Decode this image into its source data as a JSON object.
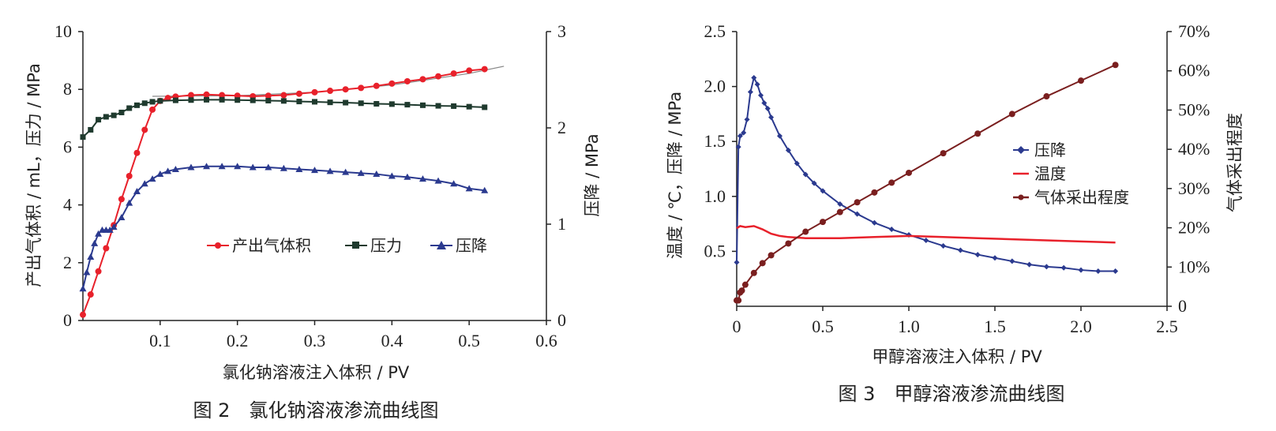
{
  "chart_data": [
    {
      "type": "line",
      "caption": "图 2　氯化钠溶液渗流曲线图",
      "xlabel": "氯化钠溶液注入体积 / PV",
      "ylabel_left": "产出气体积 / mL，压力 / MPa",
      "ylabel_right": "压降 / MPa",
      "xlim": [
        0,
        0.6
      ],
      "ylim_left": [
        0,
        10
      ],
      "ylim_right": [
        0,
        3
      ],
      "xticks": [
        "0.1",
        "0.2",
        "0.3",
        "0.4",
        "0.5",
        "0.6"
      ],
      "yticks_left": [
        "0",
        "2",
        "4",
        "6",
        "8",
        "10"
      ],
      "yticks_right": [
        "0",
        "1",
        "2",
        "3"
      ],
      "legend_position": "center-right",
      "series": [
        {
          "name": "产出气体积",
          "axis": "left",
          "color": "#e8212b",
          "marker": "circle",
          "x": [
            0,
            0.01,
            0.02,
            0.03,
            0.04,
            0.05,
            0.06,
            0.07,
            0.08,
            0.09,
            0.1,
            0.11,
            0.12,
            0.14,
            0.16,
            0.18,
            0.2,
            0.22,
            0.24,
            0.26,
            0.28,
            0.3,
            0.32,
            0.34,
            0.36,
            0.38,
            0.4,
            0.42,
            0.44,
            0.46,
            0.48,
            0.5,
            0.52
          ],
          "y": [
            0.2,
            0.9,
            1.7,
            2.5,
            3.3,
            4.2,
            5.0,
            5.8,
            6.6,
            7.3,
            7.6,
            7.7,
            7.75,
            7.8,
            7.82,
            7.8,
            7.78,
            7.76,
            7.78,
            7.8,
            7.85,
            7.9,
            7.95,
            8.0,
            8.05,
            8.12,
            8.2,
            8.28,
            8.35,
            8.45,
            8.55,
            8.65,
            8.7
          ]
        },
        {
          "name": "压力",
          "axis": "left",
          "color": "#1f3a2e",
          "marker": "square",
          "x": [
            0,
            0.01,
            0.02,
            0.03,
            0.04,
            0.05,
            0.06,
            0.07,
            0.08,
            0.09,
            0.1,
            0.12,
            0.14,
            0.16,
            0.18,
            0.2,
            0.22,
            0.24,
            0.26,
            0.28,
            0.3,
            0.32,
            0.34,
            0.36,
            0.38,
            0.4,
            0.42,
            0.44,
            0.46,
            0.48,
            0.5,
            0.52
          ],
          "y": [
            6.35,
            6.6,
            6.95,
            7.05,
            7.1,
            7.2,
            7.35,
            7.45,
            7.52,
            7.57,
            7.6,
            7.62,
            7.63,
            7.64,
            7.64,
            7.63,
            7.62,
            7.61,
            7.6,
            7.58,
            7.57,
            7.55,
            7.54,
            7.52,
            7.5,
            7.49,
            7.47,
            7.45,
            7.43,
            7.42,
            7.4,
            7.38
          ]
        },
        {
          "name": "压降",
          "axis": "right",
          "color": "#2b3a8f",
          "marker": "triangle",
          "x": [
            0,
            0.005,
            0.01,
            0.015,
            0.02,
            0.025,
            0.03,
            0.035,
            0.04,
            0.05,
            0.06,
            0.07,
            0.08,
            0.09,
            0.1,
            0.11,
            0.12,
            0.14,
            0.16,
            0.18,
            0.2,
            0.22,
            0.24,
            0.26,
            0.28,
            0.3,
            0.32,
            0.34,
            0.36,
            0.38,
            0.4,
            0.42,
            0.44,
            0.46,
            0.48,
            0.5,
            0.52
          ],
          "y": [
            0.33,
            0.5,
            0.66,
            0.8,
            0.9,
            0.94,
            0.94,
            0.94,
            0.97,
            1.07,
            1.22,
            1.34,
            1.42,
            1.47,
            1.52,
            1.55,
            1.57,
            1.59,
            1.6,
            1.6,
            1.6,
            1.59,
            1.59,
            1.58,
            1.57,
            1.56,
            1.55,
            1.54,
            1.53,
            1.52,
            1.5,
            1.49,
            1.47,
            1.45,
            1.42,
            1.37,
            1.35
          ]
        }
      ],
      "trendline": {
        "color": "#888888",
        "x": [
          0.09,
          0.2,
          0.3,
          0.4,
          0.5,
          0.545
        ],
        "y": [
          7.76,
          7.78,
          7.9,
          8.15,
          8.55,
          8.8
        ]
      }
    },
    {
      "type": "line",
      "caption": "图 3　甲醇溶液渗流曲线图",
      "xlabel": "甲醇溶液注入体积 / PV",
      "ylabel_left": "温度 / ℃，压降 / MPa",
      "ylabel_right": "气体采出程度",
      "xlim": [
        0,
        2.5
      ],
      "ylim_left": [
        0,
        2.5
      ],
      "ylim_right": [
        0,
        0.7
      ],
      "xticks": [
        "0",
        "0.5",
        "1.0",
        "1.5",
        "2.0",
        "2.5"
      ],
      "yticks_left": [
        "0.5",
        "1.0",
        "1.5",
        "2.0",
        "2.5"
      ],
      "yticks_right": [
        "0",
        "10%",
        "20%",
        "30%",
        "40%",
        "50%",
        "60%",
        "70%"
      ],
      "legend_position": "center-right",
      "series": [
        {
          "name": "压降",
          "axis": "left",
          "color": "#2b3a8f",
          "marker": "diamond",
          "x": [
            0,
            0.01,
            0.02,
            0.04,
            0.06,
            0.08,
            0.1,
            0.12,
            0.14,
            0.16,
            0.18,
            0.2,
            0.25,
            0.3,
            0.35,
            0.4,
            0.45,
            0.5,
            0.6,
            0.7,
            0.8,
            0.9,
            1.0,
            1.1,
            1.2,
            1.3,
            1.4,
            1.5,
            1.6,
            1.7,
            1.8,
            1.9,
            2.0,
            2.1,
            2.2
          ],
          "y": [
            0.4,
            1.45,
            1.55,
            1.58,
            1.7,
            1.95,
            2.08,
            2.02,
            1.92,
            1.85,
            1.8,
            1.72,
            1.55,
            1.42,
            1.3,
            1.2,
            1.12,
            1.05,
            0.93,
            0.84,
            0.76,
            0.7,
            0.65,
            0.6,
            0.55,
            0.51,
            0.47,
            0.44,
            0.41,
            0.38,
            0.36,
            0.35,
            0.33,
            0.32,
            0.32
          ]
        },
        {
          "name": "温度",
          "axis": "left",
          "color": "#e8212b",
          "marker": "none",
          "x": [
            0,
            0.02,
            0.05,
            0.1,
            0.15,
            0.2,
            0.25,
            0.3,
            0.4,
            0.5,
            0.6,
            0.8,
            1.0,
            1.2,
            1.4,
            1.6,
            1.8,
            2.0,
            2.2
          ],
          "y": [
            0.71,
            0.73,
            0.72,
            0.73,
            0.7,
            0.66,
            0.64,
            0.63,
            0.62,
            0.62,
            0.62,
            0.63,
            0.64,
            0.63,
            0.62,
            0.61,
            0.6,
            0.59,
            0.58
          ]
        },
        {
          "name": "气体采出程度",
          "axis": "right",
          "color": "#7a1f1f",
          "marker": "circle",
          "x": [
            0,
            0.01,
            0.02,
            0.03,
            0.05,
            0.1,
            0.15,
            0.2,
            0.3,
            0.4,
            0.5,
            0.6,
            0.7,
            0.8,
            0.9,
            1.0,
            1.2,
            1.4,
            1.6,
            1.8,
            2.0,
            2.2
          ],
          "y": [
            0.015,
            0.015,
            0.035,
            0.04,
            0.055,
            0.085,
            0.11,
            0.13,
            0.16,
            0.19,
            0.215,
            0.24,
            0.265,
            0.29,
            0.315,
            0.34,
            0.39,
            0.44,
            0.49,
            0.535,
            0.575,
            0.615
          ]
        }
      ]
    }
  ]
}
